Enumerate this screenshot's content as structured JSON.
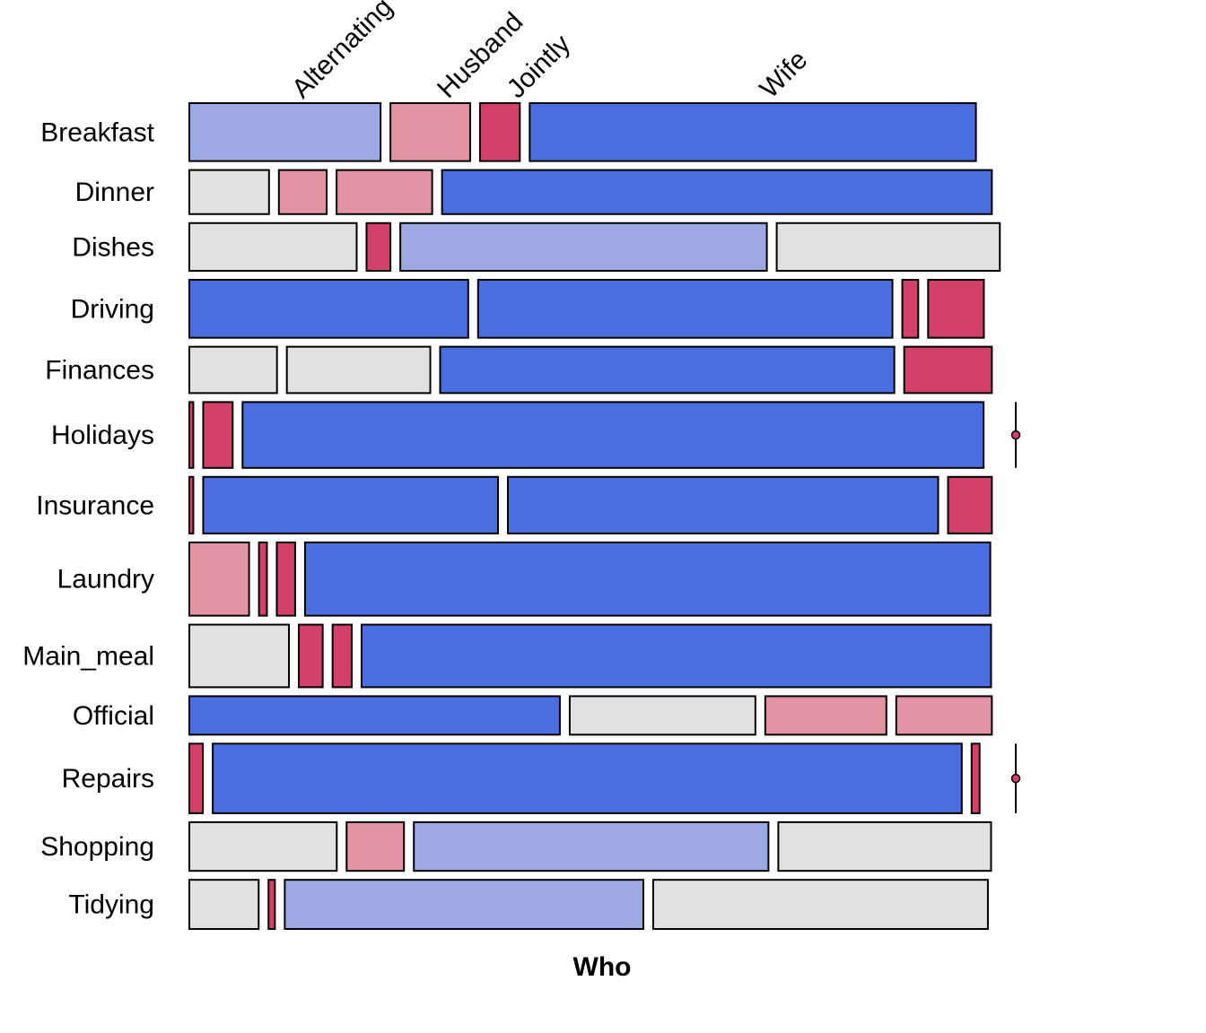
{
  "chart_data": {
    "type": "mosaic",
    "xlabel": "Who",
    "columns": [
      "Alternating",
      "Husband",
      "Jointly",
      "Wife"
    ],
    "rows": [
      {
        "name": "Breakfast",
        "weight": 0.125,
        "shares": [
          0.24,
          0.1,
          0.05,
          0.56
        ],
        "colors": [
          "#9ea8e2",
          "#e294a5",
          "#d34069",
          "#4b6fe0"
        ]
      },
      {
        "name": "Dinner",
        "weight": 0.095,
        "shares": [
          0.1,
          0.06,
          0.12,
          0.69
        ],
        "colors": [
          "#e1e1e1",
          "#e294a5",
          "#e294a5",
          "#4b6fe0"
        ]
      },
      {
        "name": "Dishes",
        "weight": 0.103,
        "shares": [
          0.21,
          0.03,
          0.46,
          0.28
        ],
        "colors": [
          "#e1e1e1",
          "#d34069",
          "#9ea8e2",
          "#e1e1e1"
        ]
      },
      {
        "name": "Driving",
        "weight": 0.125,
        "shares": [
          0.35,
          0.52,
          0.02,
          0.07
        ],
        "colors": [
          "#4b6fe0",
          "#4b6fe0",
          "#d34069",
          "#d34069"
        ]
      },
      {
        "name": "Finances",
        "weight": 0.1,
        "shares": [
          0.11,
          0.18,
          0.57,
          0.11
        ],
        "colors": [
          "#e1e1e1",
          "#e1e1e1",
          "#4b6fe0",
          "#d34069"
        ]
      },
      {
        "name": "Holidays",
        "weight": 0.142,
        "shares": [
          0.005,
          0.037,
          0.93,
          0.0
        ],
        "colors": [
          "#d34069",
          "#d34069",
          "#4b6fe0",
          "#d34069"
        ]
      },
      {
        "name": "Insurance",
        "weight": 0.122,
        "shares": [
          0.005,
          0.37,
          0.54,
          0.055
        ],
        "colors": [
          "#d34069",
          "#4b6fe0",
          "#4b6fe0",
          "#d34069"
        ]
      },
      {
        "name": "Laundry",
        "weight": 0.158,
        "shares": [
          0.075,
          0.01,
          0.023,
          0.86
        ],
        "colors": [
          "#e294a5",
          "#d34069",
          "#d34069",
          "#4b6fe0"
        ]
      },
      {
        "name": "Main_meal",
        "weight": 0.135,
        "shares": [
          0.125,
          0.03,
          0.024,
          0.79
        ],
        "colors": [
          "#e1e1e1",
          "#d34069",
          "#d34069",
          "#4b6fe0"
        ]
      },
      {
        "name": "Official",
        "weight": 0.083,
        "shares": [
          0.465,
          0.233,
          0.152,
          0.12
        ],
        "colors": [
          "#4b6fe0",
          "#e1e1e1",
          "#e294a5",
          "#e294a5"
        ]
      },
      {
        "name": "Repairs",
        "weight": 0.15,
        "shares": [
          0.017,
          0.94,
          0.01,
          0.0
        ],
        "colors": [
          "#d34069",
          "#4b6fe0",
          "#d34069",
          "#d34069"
        ]
      },
      {
        "name": "Shopping",
        "weight": 0.105,
        "shares": [
          0.185,
          0.072,
          0.445,
          0.267
        ],
        "colors": [
          "#e1e1e1",
          "#e294a5",
          "#9ea8e2",
          "#e1e1e1"
        ]
      },
      {
        "name": "Tidying",
        "weight": 0.106,
        "shares": [
          0.087,
          0.008,
          0.45,
          0.42
        ],
        "colors": [
          "#e1e1e1",
          "#d34069",
          "#9ea8e2",
          "#e1e1e1"
        ]
      }
    ]
  }
}
